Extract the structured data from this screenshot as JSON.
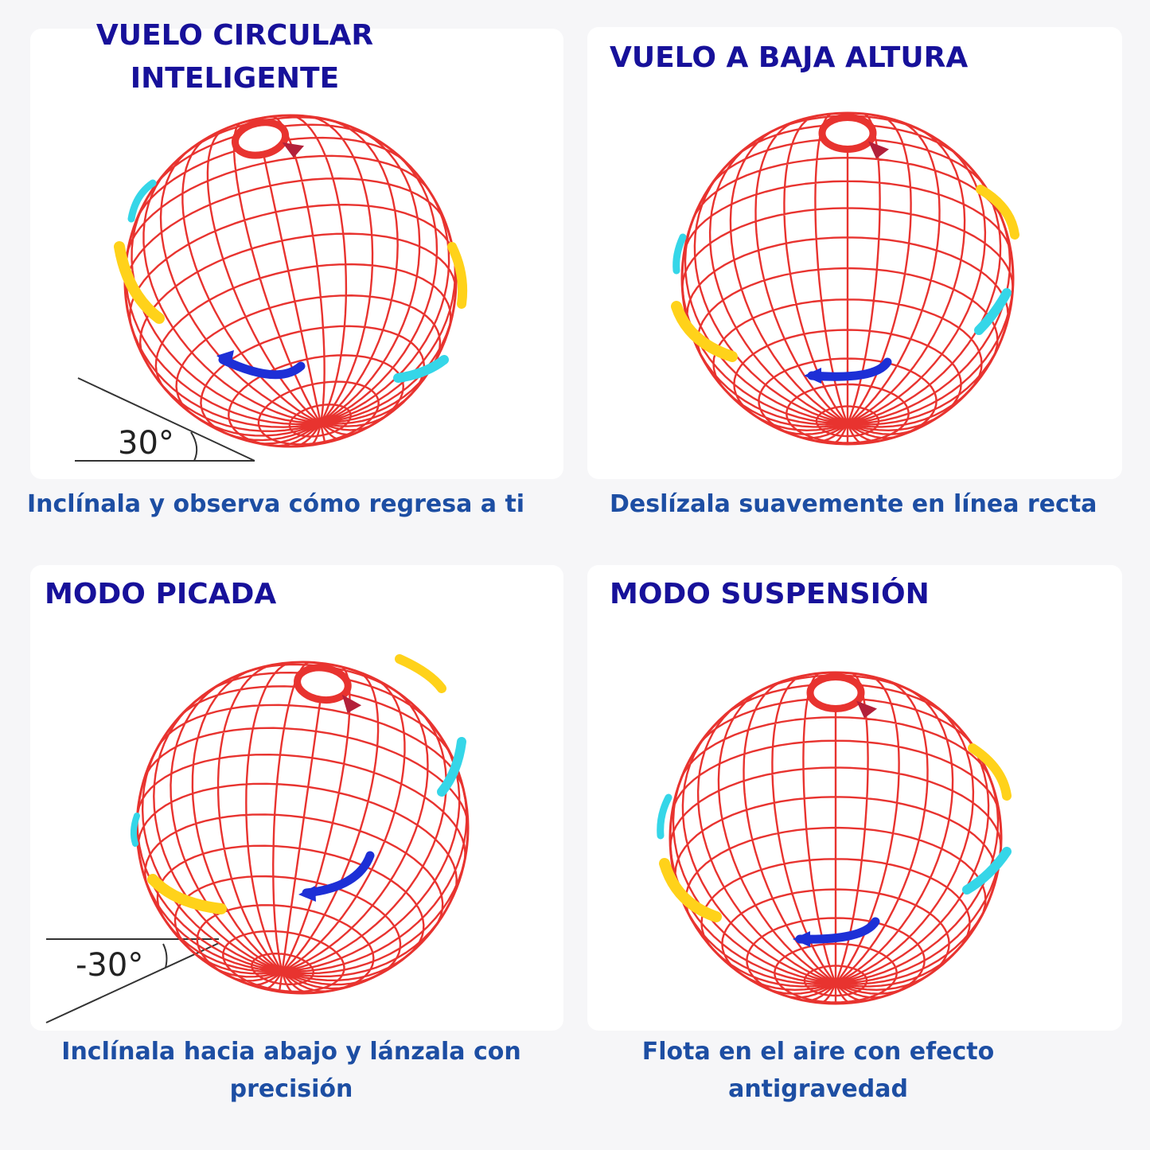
{
  "panels": [
    {
      "title_lines": [
        "VUELO CIRCULAR",
        "INTELIGENTE"
      ],
      "caption_lines": [
        "Inclínala y observa cómo regresa a ti"
      ],
      "angle": "30°"
    },
    {
      "title_lines": [
        "VUELO A BAJA ALTURA"
      ],
      "caption_lines": [
        "Deslízala suavemente en línea recta"
      ]
    },
    {
      "title_lines": [
        "MODO PICADA"
      ],
      "caption_lines": [
        "Inclínala hacia abajo y lánzala con",
        "precisión"
      ],
      "angle": "-30°"
    },
    {
      "title_lines": [
        "MODO SUSPENSIÓN"
      ],
      "caption_lines": [
        "Flota en el aire con efecto",
        "antigravedad"
      ]
    }
  ],
  "colors": {
    "title": "#17119a",
    "caption": "#1d4ea3",
    "grid": "#e8332f",
    "arrow_yellow": "#ffd21a",
    "arrow_cyan": "#35d6e8",
    "arrow_blue": "#1d2fd6"
  },
  "icons": [
    "ball-grid-icon",
    "rotation-arrow-icon"
  ]
}
